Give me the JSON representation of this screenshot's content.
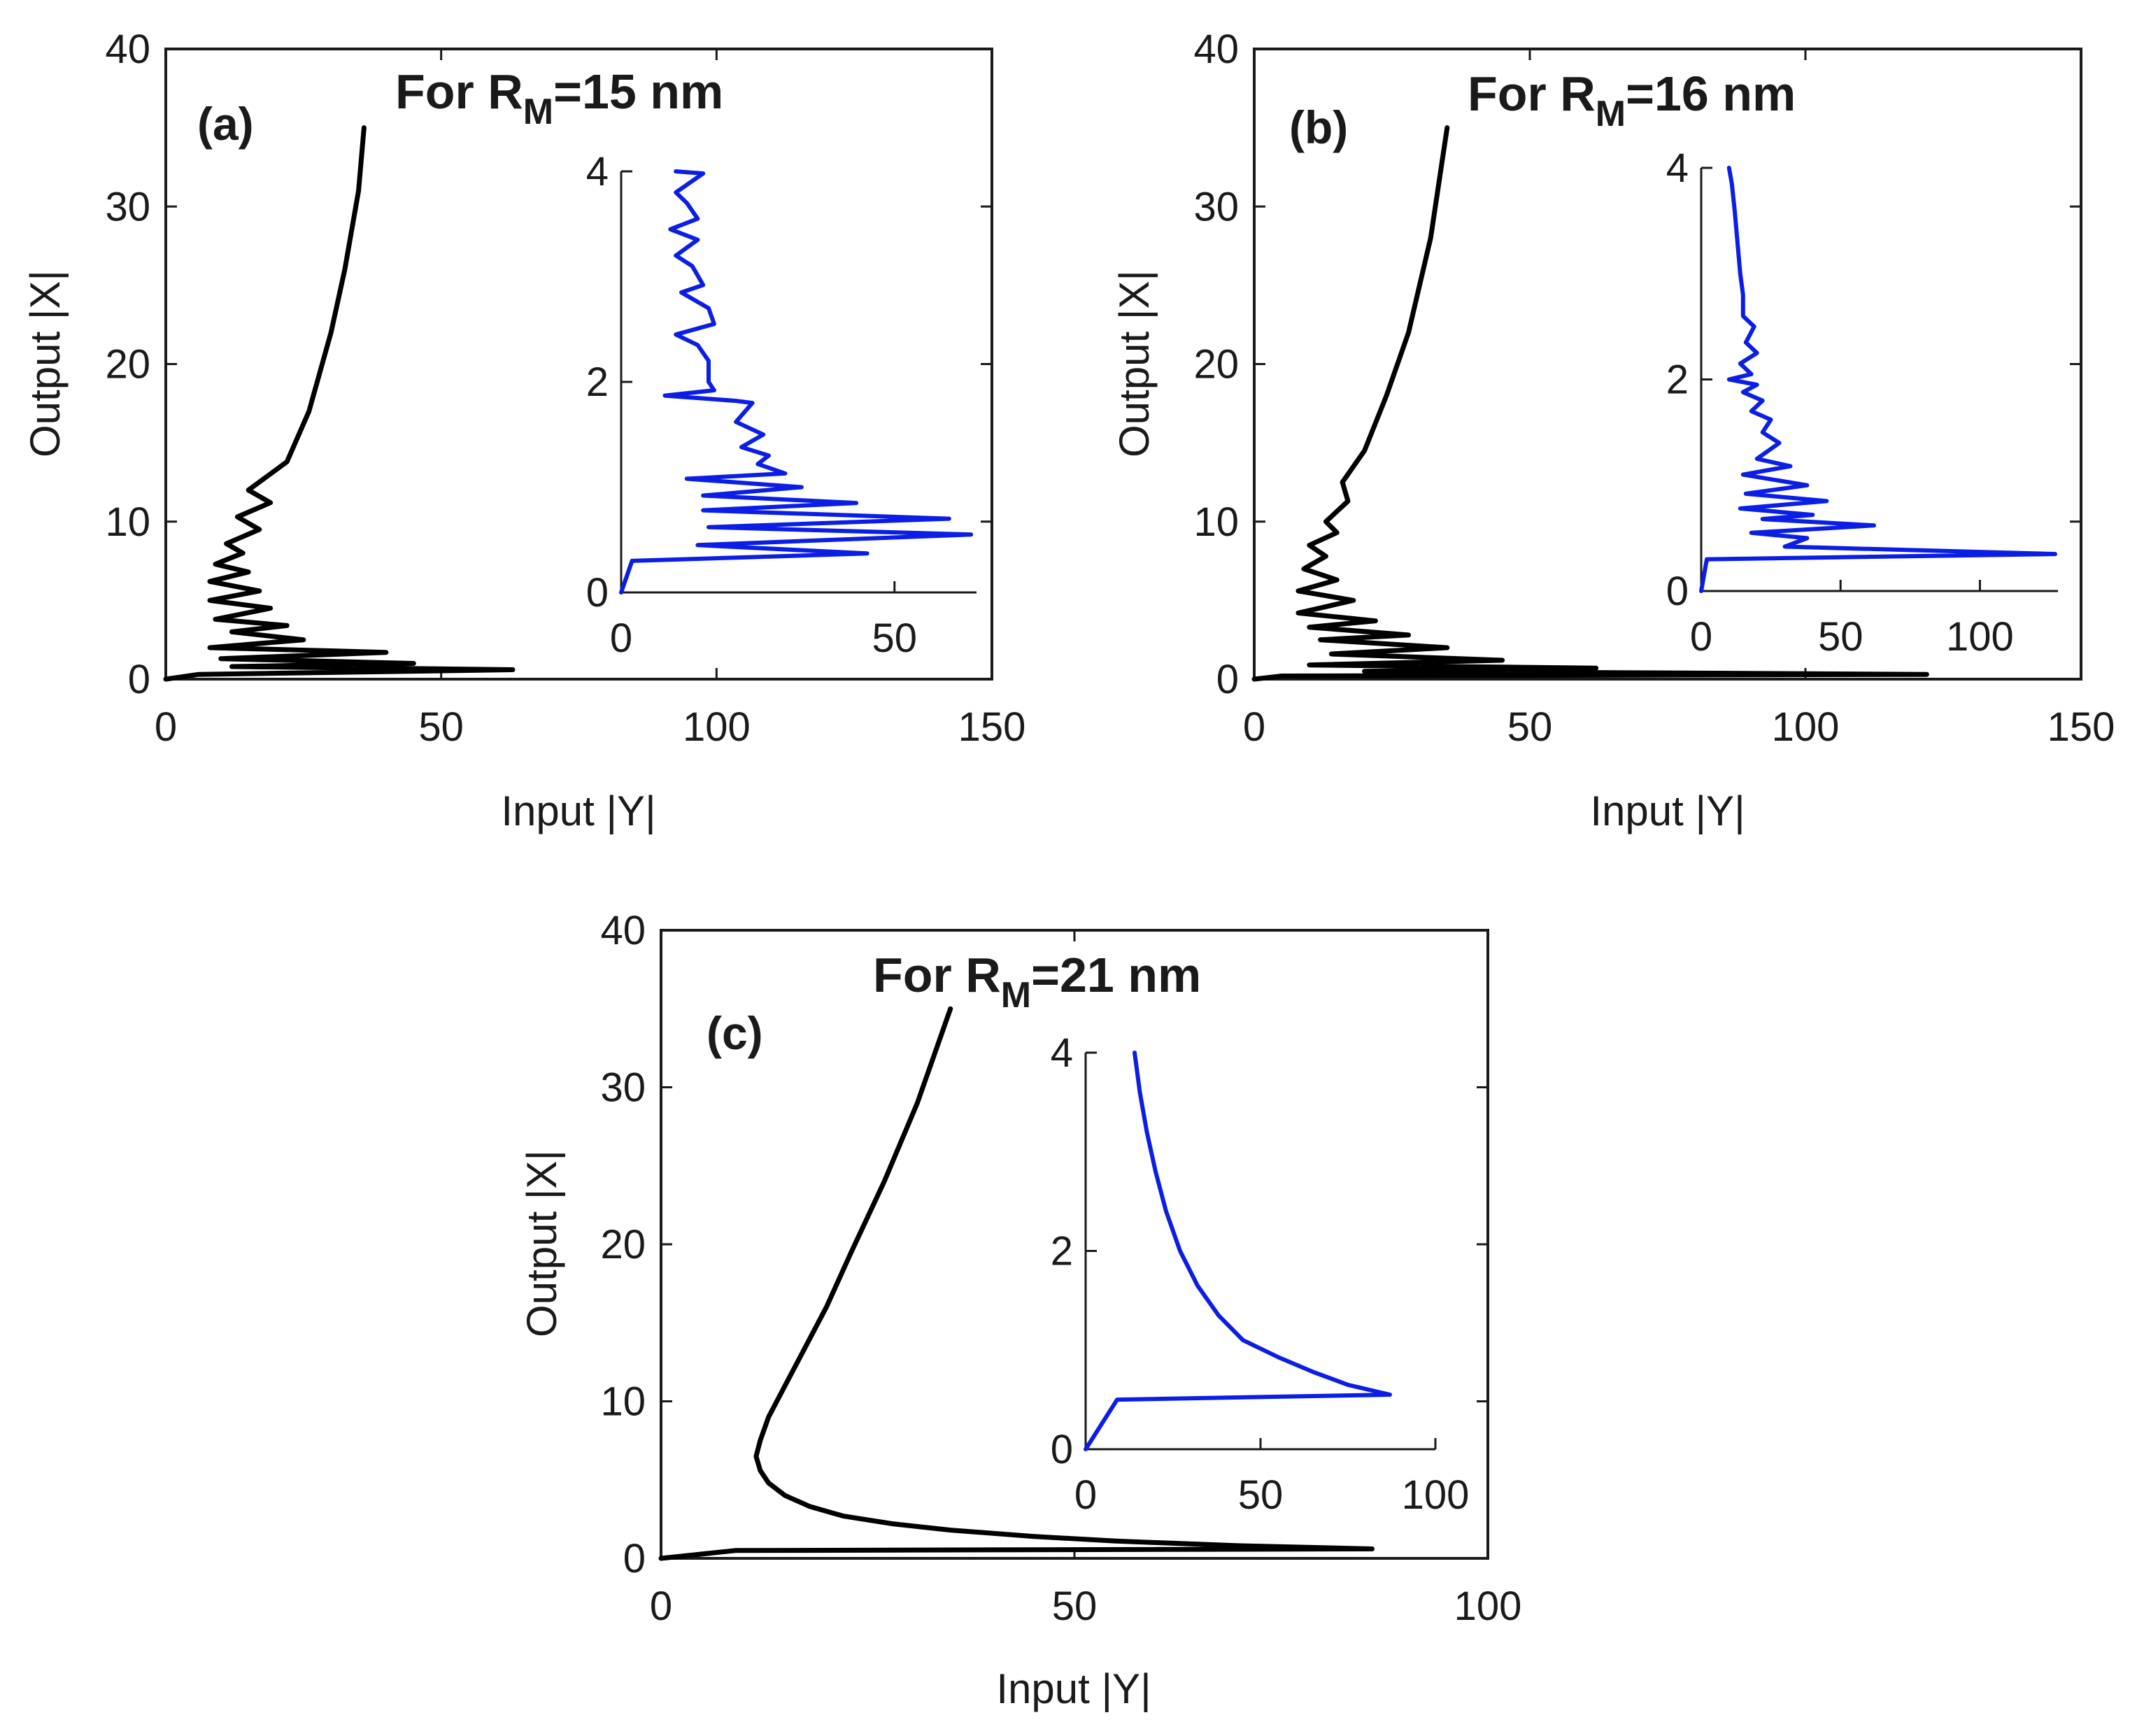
{
  "colors": {
    "main_series": "#000000",
    "inset_series": "#0a1ee6",
    "axis": "#1a1a1a",
    "background": "#ffffff"
  },
  "chart_data": [
    {
      "type": "line",
      "panel_label": "(a)",
      "title": {
        "prefix": "For R",
        "subscript": "M",
        "suffix": "=15 nm"
      },
      "xlabel": "Input |Y|",
      "ylabel": "Output |X|",
      "xlim": [
        0,
        150
      ],
      "ylim": [
        0,
        40
      ],
      "xticks": [
        0,
        50,
        100,
        150
      ],
      "yticks": [
        0,
        10,
        20,
        30,
        40
      ],
      "series": [
        {
          "name": "main",
          "color": "#000000",
          "points": [
            [
              0,
              0
            ],
            [
              6,
              0.3
            ],
            [
              63,
              0.6
            ],
            [
              12,
              0.8
            ],
            [
              45,
              1.0
            ],
            [
              10,
              1.3
            ],
            [
              40,
              1.7
            ],
            [
              8,
              2.0
            ],
            [
              25,
              2.5
            ],
            [
              12,
              3.0
            ],
            [
              22,
              3.4
            ],
            [
              9,
              3.8
            ],
            [
              19,
              4.5
            ],
            [
              8,
              5.0
            ],
            [
              17,
              5.6
            ],
            [
              8,
              6.2
            ],
            [
              15,
              6.8
            ],
            [
              9,
              7.3
            ],
            [
              14,
              8.0
            ],
            [
              11,
              8.6
            ],
            [
              17,
              9.5
            ],
            [
              13,
              10.3
            ],
            [
              19,
              11.2
            ],
            [
              15,
              12.0
            ],
            [
              22,
              13.8
            ],
            [
              26,
              17.0
            ],
            [
              30,
              22.0
            ],
            [
              32.5,
              26.0
            ],
            [
              35,
              31.0
            ],
            [
              36,
              35.0
            ]
          ]
        }
      ],
      "inset": {
        "xlim": [
          0,
          65
        ],
        "ylim": [
          0,
          4
        ],
        "xticks": [
          0,
          50
        ],
        "yticks": [
          0,
          2,
          4
        ],
        "series": [
          {
            "name": "inset",
            "color": "#0a1ee6",
            "points": [
              [
                0,
                0
              ],
              [
                2,
                0.3
              ],
              [
                45,
                0.37
              ],
              [
                14,
                0.45
              ],
              [
                64,
                0.55
              ],
              [
                16,
                0.62
              ],
              [
                60,
                0.7
              ],
              [
                15,
                0.78
              ],
              [
                43,
                0.85
              ],
              [
                15,
                0.92
              ],
              [
                33,
                1.0
              ],
              [
                12,
                1.08
              ],
              [
                30,
                1.13
              ],
              [
                25,
                1.22
              ],
              [
                27,
                1.3
              ],
              [
                22,
                1.38
              ],
              [
                26,
                1.5
              ],
              [
                21,
                1.62
              ],
              [
                24,
                1.8
              ],
              [
                21,
                1.82
              ],
              [
                8,
                1.87
              ],
              [
                17,
                1.92
              ],
              [
                16,
                2.0
              ],
              [
                16,
                2.2
              ],
              [
                14,
                2.35
              ],
              [
                10,
                2.45
              ],
              [
                17,
                2.55
              ],
              [
                16,
                2.7
              ],
              [
                11,
                2.85
              ],
              [
                15,
                2.92
              ],
              [
                13,
                3.1
              ],
              [
                10,
                3.2
              ],
              [
                14,
                3.35
              ],
              [
                9,
                3.45
              ],
              [
                14,
                3.55
              ],
              [
                12,
                3.7
              ],
              [
                10,
                3.8
              ],
              [
                15,
                3.98
              ],
              [
                10,
                4.0
              ]
            ]
          }
        ]
      }
    },
    {
      "type": "line",
      "panel_label": "(b)",
      "title": {
        "prefix": "For R",
        "subscript": "M",
        "suffix": "=16 nm"
      },
      "xlabel": "Input |Y|",
      "ylabel": "Output |X|",
      "xlim": [
        0,
        150
      ],
      "ylim": [
        0,
        40
      ],
      "xticks": [
        0,
        50,
        100,
        150
      ],
      "yticks": [
        0,
        10,
        20,
        30,
        40
      ],
      "series": [
        {
          "name": "main",
          "color": "#000000",
          "points": [
            [
              0,
              0
            ],
            [
              5,
              0.2
            ],
            [
              122,
              0.3
            ],
            [
              20,
              0.5
            ],
            [
              62,
              0.7
            ],
            [
              10,
              0.9
            ],
            [
              45,
              1.2
            ],
            [
              14,
              1.6
            ],
            [
              35,
              2.0
            ],
            [
              12,
              2.5
            ],
            [
              28,
              2.8
            ],
            [
              10,
              3.3
            ],
            [
              22,
              3.7
            ],
            [
              8,
              4.2
            ],
            [
              18,
              5.0
            ],
            [
              8,
              5.6
            ],
            [
              15,
              6.3
            ],
            [
              9,
              7.0
            ],
            [
              13,
              7.8
            ],
            [
              10,
              8.5
            ],
            [
              15,
              9.3
            ],
            [
              13,
              10.0
            ],
            [
              17,
              11.3
            ],
            [
              16,
              12.5
            ],
            [
              20,
              14.5
            ],
            [
              24,
              18.0
            ],
            [
              28,
              22.0
            ],
            [
              32,
              28.0
            ],
            [
              35,
              35.0
            ]
          ]
        }
      ],
      "inset": {
        "xlim": [
          0,
          128
        ],
        "ylim": [
          0,
          4
        ],
        "xticks": [
          0,
          50,
          100
        ],
        "yticks": [
          0,
          2,
          4
        ],
        "series": [
          {
            "name": "inset",
            "color": "#0a1ee6",
            "points": [
              [
                0,
                0
              ],
              [
                2,
                0.3
              ],
              [
                127,
                0.35
              ],
              [
                30,
                0.42
              ],
              [
                38,
                0.5
              ],
              [
                18,
                0.55
              ],
              [
                62,
                0.62
              ],
              [
                22,
                0.68
              ],
              [
                40,
                0.72
              ],
              [
                14,
                0.78
              ],
              [
                45,
                0.85
              ],
              [
                16,
                0.92
              ],
              [
                38,
                1.0
              ],
              [
                15,
                1.1
              ],
              [
                32,
                1.18
              ],
              [
                20,
                1.25
              ],
              [
                28,
                1.4
              ],
              [
                22,
                1.5
              ],
              [
                25,
                1.62
              ],
              [
                18,
                1.7
              ],
              [
                22,
                1.8
              ],
              [
                15,
                1.88
              ],
              [
                20,
                1.95
              ],
              [
                10,
                2.0
              ],
              [
                18,
                2.05
              ],
              [
                14,
                2.15
              ],
              [
                20,
                2.25
              ],
              [
                16,
                2.35
              ],
              [
                19,
                2.5
              ],
              [
                15,
                2.6
              ],
              [
                15,
                2.8
              ],
              [
                14,
                3.0
              ],
              [
                13,
                3.3
              ],
              [
                12,
                3.6
              ],
              [
                11,
                3.85
              ],
              [
                10,
                4.0
              ]
            ]
          }
        ]
      }
    },
    {
      "type": "line",
      "panel_label": "(c)",
      "title": {
        "prefix": "For R",
        "subscript": "M",
        "suffix": "=21 nm"
      },
      "xlabel": "Input |Y|",
      "ylabel": "Output |X|",
      "xlim": [
        0,
        100
      ],
      "ylim": [
        0,
        40
      ],
      "xticks": [
        0,
        50,
        100
      ],
      "yticks": [
        0,
        10,
        20,
        30,
        40
      ],
      "series": [
        {
          "name": "main",
          "color": "#000000",
          "points": [
            [
              0,
              0
            ],
            [
              9,
              0.5
            ],
            [
              86,
              0.6
            ],
            [
              70,
              0.8
            ],
            [
              55,
              1.1
            ],
            [
              45,
              1.4
            ],
            [
              35,
              1.8
            ],
            [
              28,
              2.2
            ],
            [
              22,
              2.7
            ],
            [
              18,
              3.3
            ],
            [
              15,
              4.0
            ],
            [
              13,
              4.8
            ],
            [
              12,
              5.6
            ],
            [
              11.5,
              6.5
            ],
            [
              12,
              7.5
            ],
            [
              13,
              9.0
            ],
            [
              15,
              11.0
            ],
            [
              17,
              13.0
            ],
            [
              20,
              16.0
            ],
            [
              23,
              19.5
            ],
            [
              27,
              24.0
            ],
            [
              31,
              29.0
            ],
            [
              35,
              35.0
            ]
          ]
        }
      ],
      "inset": {
        "xlim": [
          0,
          100
        ],
        "ylim": [
          0,
          4
        ],
        "xticks": [
          0,
          50,
          100
        ],
        "yticks": [
          0,
          2,
          4
        ],
        "series": [
          {
            "name": "inset",
            "color": "#0a1ee6",
            "points": [
              [
                0,
                0
              ],
              [
                9,
                0.5
              ],
              [
                87,
                0.55
              ],
              [
                75,
                0.65
              ],
              [
                65,
                0.78
              ],
              [
                55,
                0.93
              ],
              [
                45,
                1.1
              ],
              [
                38,
                1.35
              ],
              [
                32,
                1.65
              ],
              [
                27,
                2.0
              ],
              [
                23,
                2.4
              ],
              [
                20,
                2.8
              ],
              [
                17.5,
                3.2
              ],
              [
                15.5,
                3.6
              ],
              [
                14,
                4.0
              ]
            ]
          }
        ]
      }
    }
  ]
}
